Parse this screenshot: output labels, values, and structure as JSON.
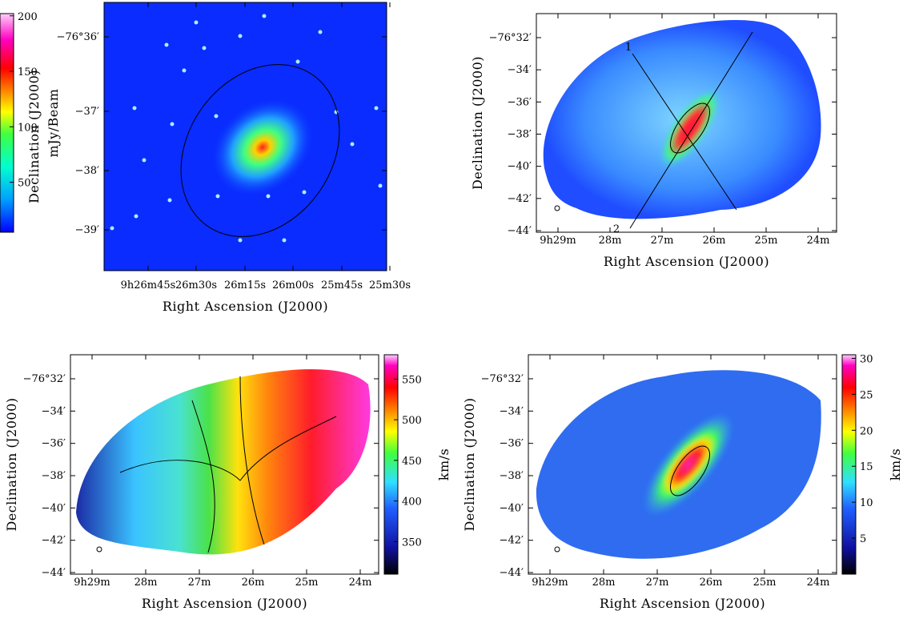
{
  "panels": [
    {
      "yticks": [
        "−76°36′",
        "−37′",
        "−38′",
        "−39′"
      ],
      "xticks": [
        "9h26m45s",
        "26m30s",
        "26m15s",
        "26m00s",
        "25m45s",
        "25m30s"
      ],
      "ylabel": "Declination (J2000)",
      "xlabel": "Right Ascension (J2000)"
    },
    {
      "yticks": [
        "−76°32′",
        "−34′",
        "−36′",
        "−38′",
        "−40′",
        "−42′",
        "−44′"
      ],
      "xticks": [
        "9h29m",
        "28m",
        "27m",
        "26m",
        "25m",
        "24m"
      ],
      "ylabel": "Declination (J2000)",
      "xlabel": "Right Ascension (J2000)",
      "annotations": [
        "1",
        "2"
      ],
      "colorbar": {
        "label": "mJy/Beam",
        "lim": [
          5,
          202
        ],
        "ticks": [
          50,
          100,
          150,
          200
        ]
      }
    },
    {
      "yticks": [
        "−76°32′",
        "−34′",
        "−36′",
        "−38′",
        "−40′",
        "−42′",
        "−44′"
      ],
      "xticks": [
        "9h29m",
        "28m",
        "27m",
        "26m",
        "25m",
        "24m"
      ],
      "ylabel": "Declination (J2000)",
      "xlabel": "Right Ascension (J2000)",
      "colorbar": {
        "label": "km/s",
        "lim": [
          310,
          580
        ],
        "ticks": [
          350,
          400,
          450,
          500,
          550
        ]
      }
    },
    {
      "yticks": [
        "−76°32′",
        "−34′",
        "−36′",
        "−38′",
        "−40′",
        "−42′",
        "−44′"
      ],
      "xticks": [
        "9h29m",
        "28m",
        "27m",
        "26m",
        "25m",
        "24m"
      ],
      "ylabel": "Declination (J2000)",
      "xlabel": "Right Ascension (J2000)",
      "colorbar": {
        "label": "km/s",
        "lim": [
          0,
          30.5
        ],
        "ticks": [
          5,
          10,
          15,
          20,
          25,
          30
        ]
      }
    }
  ]
}
